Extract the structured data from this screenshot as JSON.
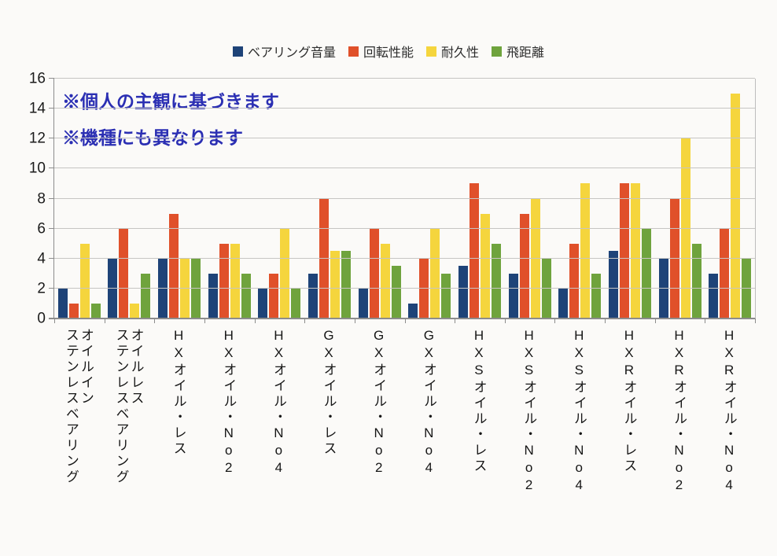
{
  "annotations": {
    "line1": "※個人の主観に基づきます",
    "line2": "※機種にも異なります",
    "color": "#2b2fb3"
  },
  "chart_data": {
    "type": "bar",
    "title": "",
    "xlabel": "",
    "ylabel": "",
    "ylim": [
      0,
      16
    ],
    "yticks": [
      0,
      2,
      4,
      6,
      8,
      10,
      12,
      14,
      16
    ],
    "grid": true,
    "legend_position": "top",
    "categories": [
      "オイルイン\nステンレスベアリング",
      "オイルレス\nステンレスベアリング",
      "HXオイル・レス",
      "HXオイル・No2",
      "HXオイル・No4",
      "GXオイル・レス",
      "GXオイル・No2",
      "GXオイル・No4",
      "HXSオイル・レス",
      "HXSオイル・No2",
      "HXSオイル・No4",
      "HXRオイル・レス",
      "HXRオイル・No2",
      "HXRオイル・No4"
    ],
    "series": [
      {
        "id": "bearing-noise",
        "name": "ベアリング音量",
        "color": "#1e4378",
        "values": [
          2,
          4,
          4,
          3,
          2,
          3,
          2,
          1,
          3.5,
          3,
          2,
          4.5,
          4,
          3
        ]
      },
      {
        "id": "rotation-performance",
        "name": "回転性能",
        "color": "#e0502a",
        "values": [
          1,
          6,
          7,
          5,
          3,
          8,
          6,
          4,
          9,
          7,
          5,
          9,
          8,
          6
        ]
      },
      {
        "id": "durability",
        "name": "耐久性",
        "color": "#f5d53d",
        "values": [
          5,
          1,
          4,
          5,
          6,
          4.5,
          5,
          6,
          7,
          8,
          9,
          9,
          12,
          15
        ]
      },
      {
        "id": "flight-distance",
        "name": "飛距離",
        "color": "#6fa33d",
        "values": [
          1,
          3,
          4,
          3,
          2,
          4.5,
          3.5,
          3,
          5,
          4,
          3,
          6,
          5,
          4
        ]
      }
    ]
  }
}
